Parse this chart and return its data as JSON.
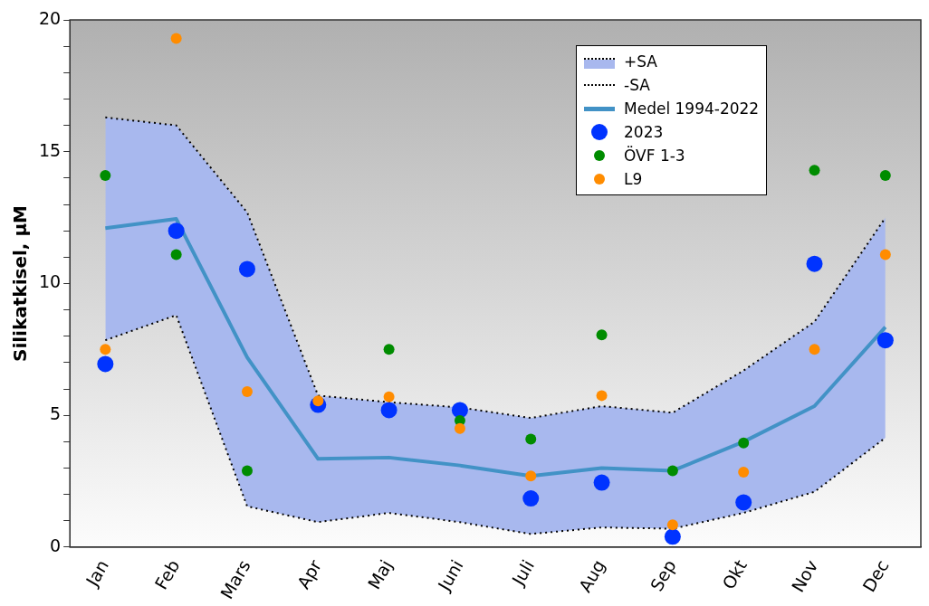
{
  "chart_data": {
    "type": "line",
    "ylabel": "Silikatkisel, µM",
    "categories": [
      "Jan",
      "Feb",
      "Mars",
      "Apr",
      "Maj",
      "Juni",
      "Juli",
      "Aug",
      "Sep",
      "Okt",
      "Nov",
      "Dec"
    ],
    "ylim": [
      0,
      20
    ],
    "yticks": [
      0,
      {
        "value": 1,
        "label": null
      },
      {
        "value": 2,
        "label": null
      },
      {
        "value": 3,
        "label": null
      },
      {
        "value": 4,
        "label": null
      },
      5,
      {
        "value": 6,
        "label": null
      },
      {
        "value": 7,
        "label": null
      },
      {
        "value": 8,
        "label": null
      },
      {
        "value": 9,
        "label": null
      },
      10,
      {
        "value": 11,
        "label": null
      },
      {
        "value": 12,
        "label": null
      },
      {
        "value": 13,
        "label": null
      },
      {
        "value": 14,
        "label": null
      },
      15,
      {
        "value": 16,
        "label": null
      },
      {
        "value": 17,
        "label": null
      },
      {
        "value": 18,
        "label": null
      },
      {
        "value": 19,
        "label": null
      },
      20
    ],
    "grid": false,
    "legend": "top right",
    "series": [
      {
        "name": "+SA",
        "type": "area",
        "color": "#a8b8ee",
        "line_style": "dotted",
        "values": [
          16.3,
          16.0,
          12.7,
          5.75,
          5.5,
          5.3,
          4.9,
          5.35,
          5.1,
          6.7,
          8.55,
          12.5
        ]
      },
      {
        "name": "-SA",
        "color": "#000000",
        "line_style": "dotted",
        "values": [
          7.85,
          8.8,
          1.55,
          0.95,
          1.3,
          0.95,
          0.5,
          0.75,
          0.7,
          1.3,
          2.1,
          4.15
        ]
      },
      {
        "name": "Medel 1994-2022",
        "color": "#4292c6",
        "line_style": "solid",
        "values": [
          12.1,
          12.45,
          7.2,
          3.35,
          3.4,
          3.1,
          2.7,
          3.0,
          2.9,
          4.0,
          5.35,
          8.35
        ]
      },
      {
        "name": "2023",
        "type": "scatter",
        "marker": "circle",
        "color": "#0033ff",
        "values": [
          6.95,
          12.0,
          10.55,
          5.4,
          5.2,
          5.2,
          1.85,
          2.45,
          0.4,
          1.7,
          10.75,
          7.85
        ]
      },
      {
        "name": "ÖVF 1-3",
        "type": "scatter",
        "marker": "circle",
        "color": "#008c00",
        "values": [
          14.1,
          11.1,
          2.9,
          null,
          7.5,
          4.8,
          4.1,
          8.05,
          2.9,
          3.95,
          14.3,
          14.1
        ]
      },
      {
        "name": "L9",
        "type": "scatter",
        "marker": "circle",
        "color": "#ff8c00",
        "values": [
          7.5,
          19.3,
          5.9,
          5.55,
          5.7,
          4.5,
          2.7,
          5.75,
          0.85,
          2.85,
          7.5,
          11.1
        ]
      }
    ]
  }
}
